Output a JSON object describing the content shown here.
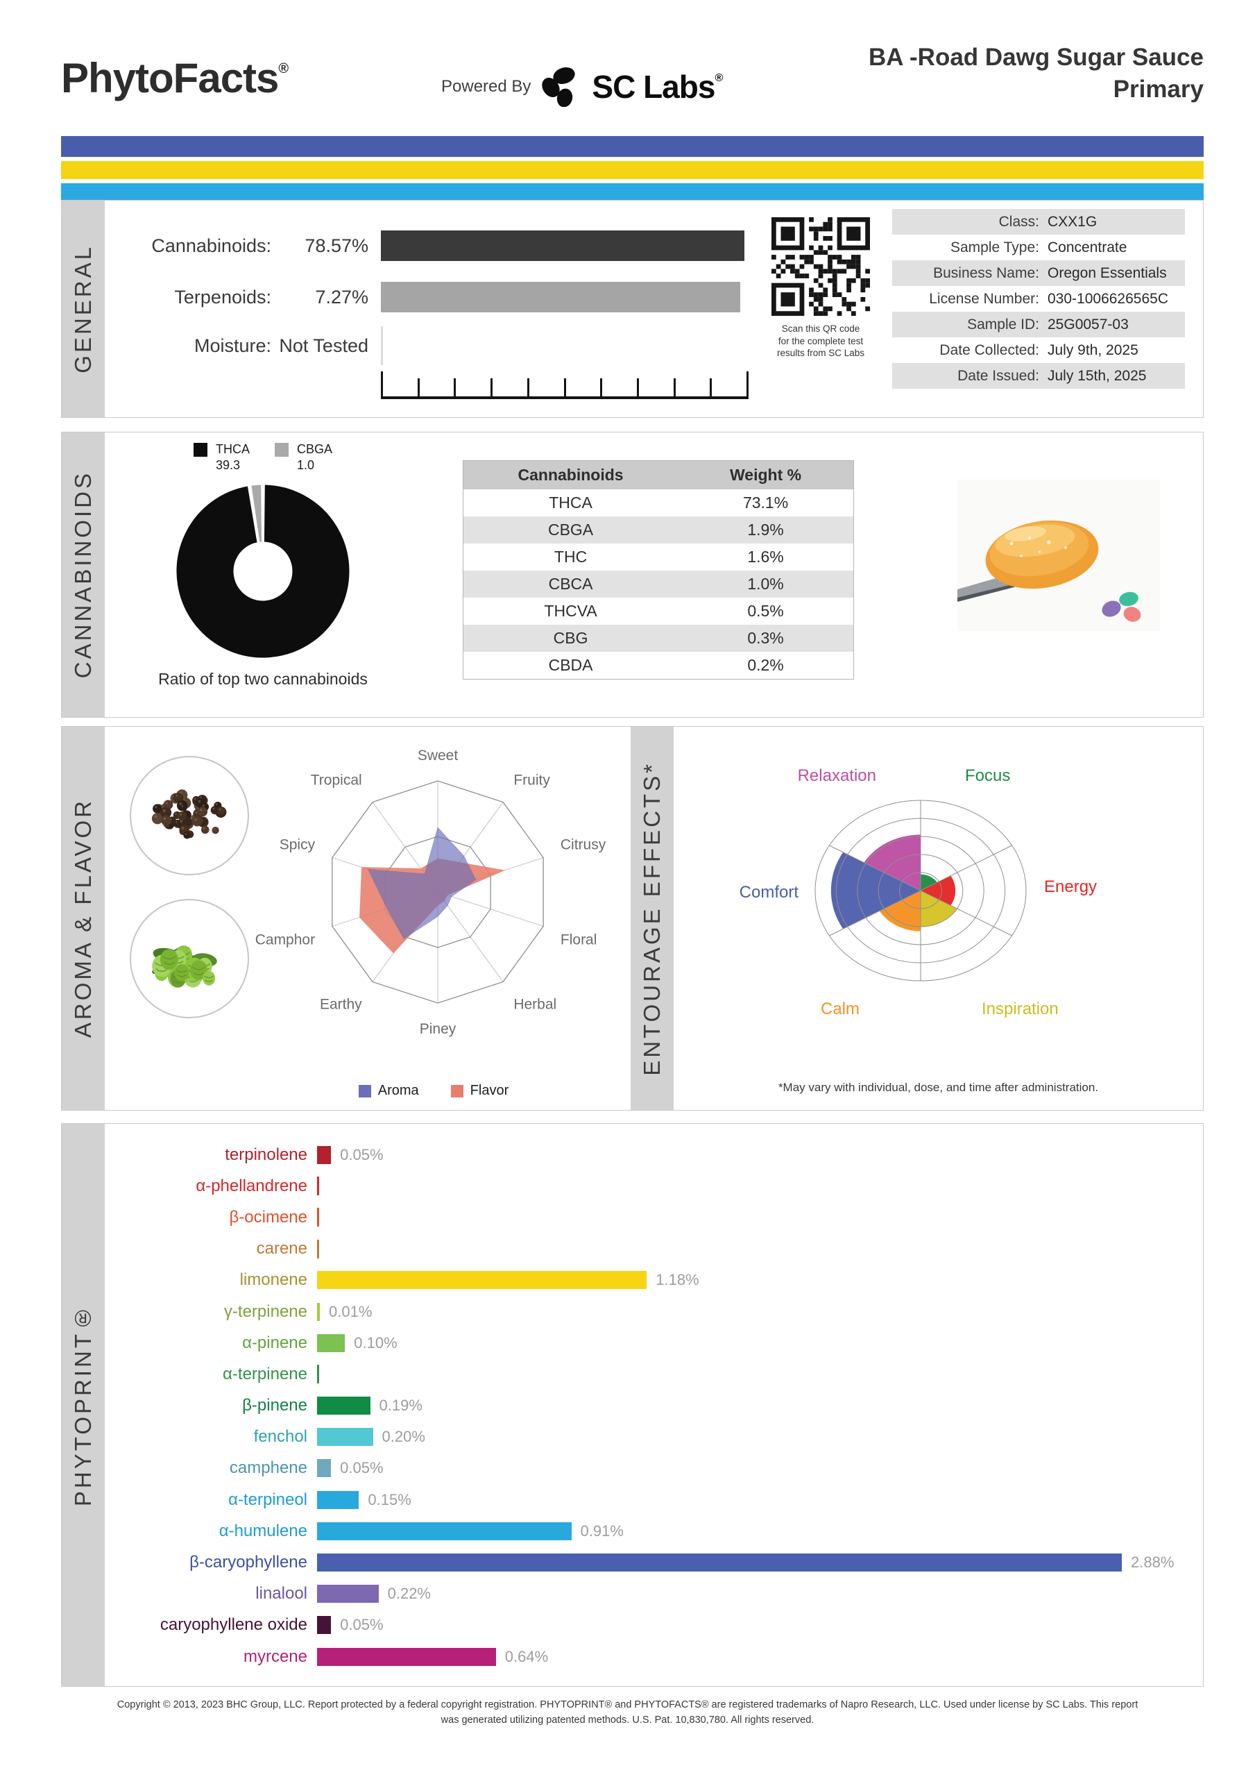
{
  "header": {
    "brand": "PhytoFacts",
    "brand_reg": "®",
    "powered_by": "Powered By",
    "lab_name": "SC Labs",
    "lab_reg": "®",
    "title_line1": "BA -Road Dawg Sugar Sauce",
    "title_line2": "Primary"
  },
  "stripe_colors": {
    "indigo": "#4a5dac",
    "yellow": "#f5d414",
    "light_blue": "#2baae2"
  },
  "general": {
    "section_label": "GENERAL",
    "overview": [
      {
        "label": "Cannabinoids:",
        "value": "78.57%"
      },
      {
        "label": "Terpenoids:",
        "value": "7.27%"
      },
      {
        "label": "Moisture:",
        "value": "Not Tested"
      }
    ],
    "qr_caption_lines": [
      "Scan this QR code",
      "for the complete test",
      "results from SC Labs"
    ],
    "info": [
      {
        "label": "Class:",
        "value": "CXX1G"
      },
      {
        "label": "Sample Type:",
        "value": "Concentrate"
      },
      {
        "label": "Business Name:",
        "value": "Oregon Essentials"
      },
      {
        "label": "License Number:",
        "value": "030-1006626565C"
      },
      {
        "label": "Sample ID:",
        "value": "25G0057-03"
      },
      {
        "label": "Date Collected:",
        "value": "July 9th, 2025"
      },
      {
        "label": "Date Issued:",
        "value": "July 15th, 2025"
      }
    ]
  },
  "cannabinoids": {
    "section_label": "CANNABINOIDS",
    "donut_caption": "Ratio of top two cannabinoids",
    "table_headers": [
      "Cannabinoids",
      "Weight %"
    ]
  },
  "aroma_flavor": {
    "section_label": "AROMA & FLAVOR",
    "legend": [
      {
        "name": "Aroma",
        "color": "#6a6fb8"
      },
      {
        "name": "Flavor",
        "color": "#e87d6b"
      }
    ]
  },
  "entourage": {
    "section_label": "ENTOURAGE EFFECTS*",
    "footnote": "*May vary with individual, dose, and time after administration."
  },
  "phytoprint": {
    "section_label": "PHYTOPRINT®"
  },
  "footer": {
    "line1": "Copyright © 2013, 2023 BHC Group, LLC. Report protected by a federal copyright registration. PHYTOPRINT® and PHYTOFACTS® are registered trademarks of Napro Research, LLC. Used under license by SC Labs. This report",
    "line2": "was generated utilizing patented methods. U.S. Pat. 10,830,780. All rights reserved."
  },
  "chart_data": [
    {
      "type": "pie",
      "name": "ratio-of-top-two-cannabinoids",
      "title": "Ratio of top two cannabinoids",
      "slices": [
        {
          "label": "THCA",
          "value": 39.3,
          "color": "#0d0d0d"
        },
        {
          "label": "CBGA",
          "value": 1.0,
          "color": "#a9a9a9"
        }
      ],
      "donut_hole_ratio": 0.32
    },
    {
      "type": "table",
      "name": "cannabinoids-weight-table",
      "headers": [
        "Cannabinoids",
        "Weight %"
      ],
      "rows": [
        [
          "THCA",
          "73.1%"
        ],
        [
          "CBGA",
          "1.9%"
        ],
        [
          "THC",
          "1.6%"
        ],
        [
          "CBCA",
          "1.0%"
        ],
        [
          "THCVA",
          "0.5%"
        ],
        [
          "CBG",
          "0.3%"
        ],
        [
          "CBDA",
          "0.2%"
        ]
      ]
    },
    {
      "type": "radar",
      "name": "aroma-flavor-radar",
      "axes": [
        "Sweet",
        "Fruity",
        "Citrusy",
        "Floral",
        "Herbal",
        "Piney",
        "Earthy",
        "Camphor",
        "Spicy",
        "Tropical"
      ],
      "scale_note": "values are relative 0-1, outer ring = 1.0, inner gridline at 0.5",
      "series": [
        {
          "name": "Flavor",
          "color": "#e87d6b",
          "values": [
            0.3,
            0.33,
            0.63,
            0.09,
            0.1,
            0.12,
            0.68,
            0.74,
            0.72,
            0.26
          ]
        },
        {
          "name": "Aroma",
          "color": "#6a6fb8",
          "values": [
            0.58,
            0.4,
            0.36,
            0.13,
            0.15,
            0.22,
            0.52,
            0.48,
            0.66,
            0.2
          ]
        }
      ]
    },
    {
      "type": "rose",
      "name": "entourage-effects-rose",
      "scale_note": "relative 0-1 of outer ring, 5 concentric rings, each wedge fills a 60 degree sector clockwise from top",
      "sectors": [
        {
          "label": "Focus",
          "value": 0.18,
          "color": "#1d8c45",
          "label_color": "#1d8c45"
        },
        {
          "label": "Energy",
          "value": 0.33,
          "color": "#e42525",
          "label_color": "#e42525"
        },
        {
          "label": "Inspiration",
          "value": 0.4,
          "color": "#d4c322",
          "label_color": "#cdbc1e"
        },
        {
          "label": "Calm",
          "value": 0.45,
          "color": "#f59120",
          "label_color": "#f59120"
        },
        {
          "label": "Comfort",
          "value": 0.85,
          "color": "#4f5fad",
          "label_color": "#4a5cad"
        },
        {
          "label": "Relaxation",
          "value": 0.62,
          "color": "#bb4ea3",
          "label_color": "#bb4ea3"
        }
      ]
    },
    {
      "type": "bar",
      "name": "phytoprint-terpenes",
      "xlabel": "",
      "ylabel": "weight %",
      "max_value_for_scale": 2.88,
      "bars": [
        {
          "name": "terpinolene",
          "value": 0.05,
          "display": "0.05%",
          "label_color": "#b2212d",
          "bar_color": "#b2212d"
        },
        {
          "name": "α-phellandrene",
          "value": null,
          "display": "",
          "label_color": "#d8262c",
          "bar_color": "#d8262c"
        },
        {
          "name": "β-ocimene",
          "value": null,
          "display": "",
          "label_color": "#e0512b",
          "bar_color": "#e0512b"
        },
        {
          "name": "carene",
          "value": null,
          "display": "",
          "label_color": "#bf7a35",
          "bar_color": "#bf7a35"
        },
        {
          "name": "limonene",
          "value": 1.18,
          "display": "1.18%",
          "label_color": "#a6912e",
          "bar_color": "#f7d414"
        },
        {
          "name": "γ-terpinene",
          "value": 0.01,
          "display": "0.01%",
          "label_color": "#7da33b",
          "bar_color": "#a8c93f"
        },
        {
          "name": "α-pinene",
          "value": 0.1,
          "display": "0.10%",
          "label_color": "#63a33c",
          "bar_color": "#7cc250"
        },
        {
          "name": "α-terpinene",
          "value": null,
          "display": "",
          "label_color": "#35914c",
          "bar_color": "#35914c"
        },
        {
          "name": "β-pinene",
          "value": 0.19,
          "display": "0.19%",
          "label_color": "#167f45",
          "bar_color": "#108c46"
        },
        {
          "name": "fenchol",
          "value": 0.2,
          "display": "0.20%",
          "label_color": "#2fa3ad",
          "bar_color": "#52c8d2"
        },
        {
          "name": "camphene",
          "value": 0.05,
          "display": "0.05%",
          "label_color": "#4d94ad",
          "bar_color": "#6fa9bf"
        },
        {
          "name": "α-terpineol",
          "value": 0.15,
          "display": "0.15%",
          "label_color": "#1f9cd8",
          "bar_color": "#29a8dc"
        },
        {
          "name": "α-humulene",
          "value": 0.91,
          "display": "0.91%",
          "label_color": "#1f9cd8",
          "bar_color": "#29a8dc"
        },
        {
          "name": "β-caryophyllene",
          "value": 2.88,
          "display": "2.88%",
          "label_color": "#3d50a2",
          "bar_color": "#4a5fae"
        },
        {
          "name": "linalool",
          "value": 0.22,
          "display": "0.22%",
          "label_color": "#6d55a4",
          "bar_color": "#7e68b0"
        },
        {
          "name": "caryophyllene oxide",
          "value": 0.05,
          "display": "0.05%",
          "label_color": "#451238",
          "bar_color": "#451238"
        },
        {
          "name": "myrcene",
          "value": 0.64,
          "display": "0.64%",
          "label_color": "#b02178",
          "bar_color": "#b62079"
        }
      ]
    }
  ]
}
